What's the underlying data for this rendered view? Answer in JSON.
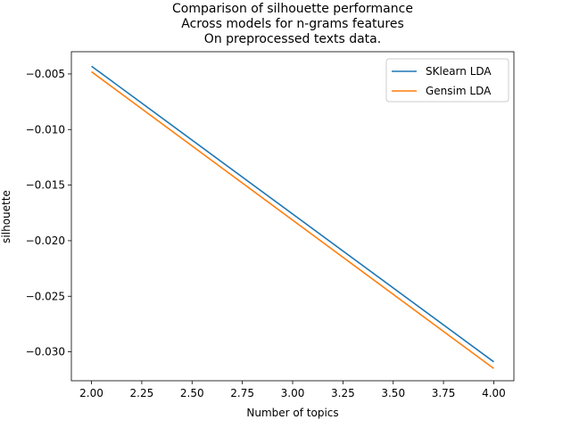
{
  "chart_data": {
    "type": "line",
    "title": [
      "Comparison of silhouette performance",
      "Across models for n-grams features",
      "On preprocessed texts data."
    ],
    "xlabel": "Number of topics",
    "ylabel": "silhouette",
    "xlim": [
      1.9,
      4.1
    ],
    "ylim": [
      -0.0326,
      -0.003
    ],
    "xticks": [
      2.0,
      2.25,
      2.5,
      2.75,
      3.0,
      3.25,
      3.5,
      3.75,
      4.0
    ],
    "xtick_labels": [
      "2.00",
      "2.25",
      "2.50",
      "2.75",
      "3.00",
      "3.25",
      "3.50",
      "3.75",
      "4.00"
    ],
    "yticks": [
      -0.005,
      -0.01,
      -0.015,
      -0.02,
      -0.025,
      -0.03
    ],
    "ytick_labels": [
      "−0.005",
      "−0.010",
      "−0.015",
      "−0.020",
      "−0.025",
      "−0.030"
    ],
    "grid": false,
    "legend_position": "top-right",
    "series": [
      {
        "name": "SKlearn LDA",
        "color": "#1f77b4",
        "x": [
          2,
          4
        ],
        "y": [
          -0.0043,
          -0.0309
        ]
      },
      {
        "name": "Gensim LDA",
        "color": "#ff7f0e",
        "x": [
          2,
          4
        ],
        "y": [
          -0.0048,
          -0.0315
        ]
      }
    ]
  }
}
